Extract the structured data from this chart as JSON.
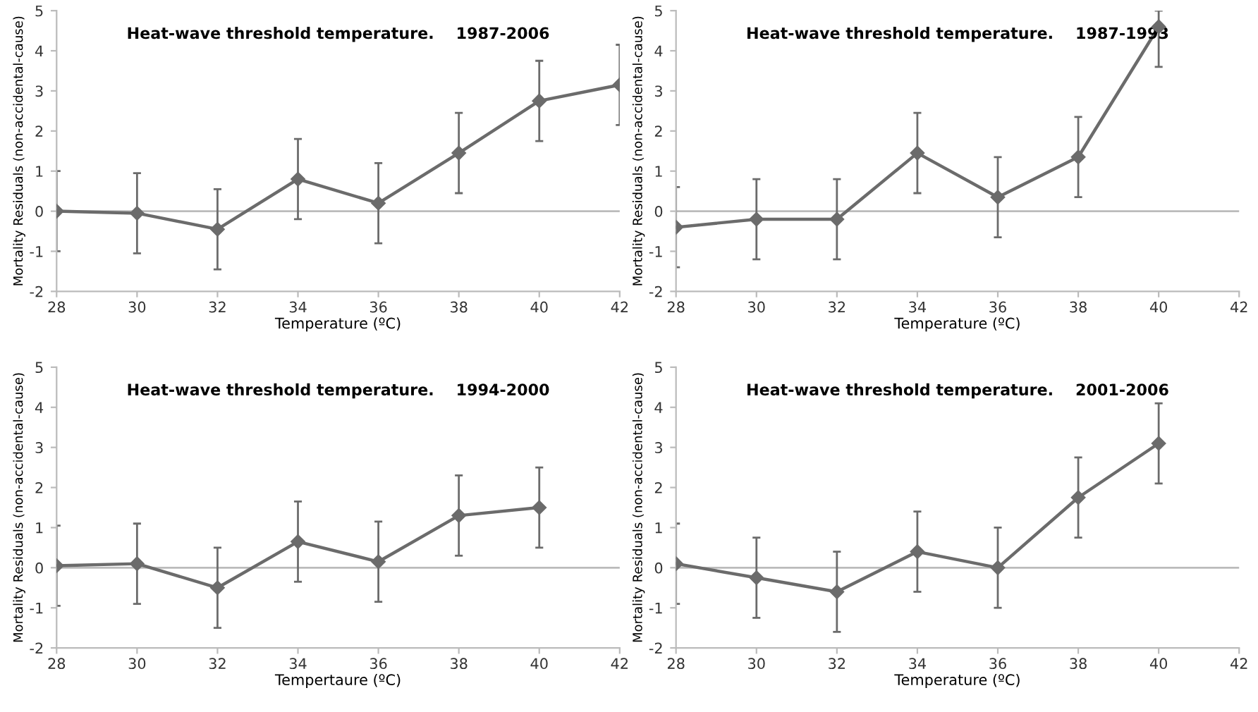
{
  "chart_data": [
    {
      "type": "line",
      "title": "Heat-wave threshold temperature.    1987-2006",
      "xlabel": "Temperature (ºC)",
      "ylabel": "Mortality Residuals (non-accidental-cause)",
      "xlim": [
        28,
        42
      ],
      "xticks": [
        28,
        30,
        32,
        34,
        36,
        38,
        40,
        42
      ],
      "ylim": [
        -2,
        5
      ],
      "yticks": [
        -2,
        -1,
        0,
        1,
        2,
        3,
        4,
        5
      ],
      "grid": false,
      "legend": false,
      "marker": "diamond",
      "line_style": "solid",
      "ref_lines": [
        {
          "axis": "y",
          "value": 0,
          "color": "#bbbbbb"
        }
      ],
      "series": [
        {
          "color": "#6b6b6b",
          "x": [
            28,
            30,
            32,
            34,
            36,
            38,
            40,
            42
          ],
          "values": [
            0,
            -0.05,
            -0.45,
            0.8,
            0.2,
            1.45,
            2.75,
            3.15
          ],
          "errors": [
            1,
            1,
            1,
            1,
            1,
            1,
            1,
            1
          ]
        }
      ]
    },
    {
      "type": "line",
      "title": "Heat-wave threshold temperature.    1987-1993",
      "xlabel": "Temperature (ºC)",
      "ylabel": "Mortality Residuals (non-accidental-cause)",
      "xlim": [
        28,
        42
      ],
      "xticks": [
        28,
        30,
        32,
        34,
        36,
        38,
        40,
        42
      ],
      "ylim": [
        -2,
        5
      ],
      "yticks": [
        -2,
        -1,
        0,
        1,
        2,
        3,
        4,
        5
      ],
      "grid": false,
      "legend": false,
      "marker": "diamond",
      "line_style": "solid",
      "ref_lines": [
        {
          "axis": "y",
          "value": 0,
          "color": "#bbbbbb"
        }
      ],
      "series": [
        {
          "color": "#6b6b6b",
          "x": [
            28,
            30,
            32,
            34,
            36,
            38,
            40
          ],
          "values": [
            -0.4,
            -0.2,
            -0.2,
            1.45,
            0.35,
            1.35,
            4.6
          ],
          "errors": [
            1,
            1,
            1,
            1,
            1,
            1,
            [
              3.6,
              5
            ]
          ]
        }
      ]
    },
    {
      "type": "line",
      "title": "Heat-wave threshold temperature.    1994-2000",
      "xlabel": "Tempertaure (ºC)",
      "ylabel": "Mortality Residuals (non-accidental-cause)",
      "xlim": [
        28,
        42
      ],
      "xticks": [
        28,
        30,
        32,
        34,
        36,
        38,
        40,
        42
      ],
      "ylim": [
        -2,
        5
      ],
      "yticks": [
        -2,
        -1,
        0,
        1,
        2,
        3,
        4,
        5
      ],
      "grid": false,
      "legend": false,
      "marker": "diamond",
      "line_style": "solid",
      "ref_lines": [
        {
          "axis": "y",
          "value": 0,
          "color": "#bbbbbb"
        }
      ],
      "series": [
        {
          "color": "#6b6b6b",
          "x": [
            28,
            30,
            32,
            34,
            36,
            38,
            40
          ],
          "values": [
            0.05,
            0.1,
            -0.5,
            0.65,
            0.15,
            1.3,
            1.5
          ],
          "errors": [
            1,
            1,
            1,
            1,
            1,
            1,
            1
          ]
        }
      ]
    },
    {
      "type": "line",
      "title": "Heat-wave threshold temperature.    2001-2006",
      "xlabel": "Temperature (ºC)",
      "ylabel": "Mortality Residuals (non-accidental-cause)",
      "xlim": [
        28,
        42
      ],
      "xticks": [
        28,
        30,
        32,
        34,
        36,
        38,
        40,
        42
      ],
      "ylim": [
        -2,
        5
      ],
      "yticks": [
        -2,
        -1,
        0,
        1,
        2,
        3,
        4,
        5
      ],
      "grid": false,
      "legend": false,
      "marker": "diamond",
      "line_style": "solid",
      "ref_lines": [
        {
          "axis": "y",
          "value": 0,
          "color": "#bbbbbb"
        }
      ],
      "series": [
        {
          "color": "#6b6b6b",
          "x": [
            28,
            30,
            32,
            34,
            36,
            38,
            40
          ],
          "values": [
            0.1,
            -0.25,
            -0.6,
            0.4,
            0.0,
            1.75,
            3.1
          ],
          "errors": [
            1,
            1,
            1,
            1,
            1,
            1,
            1
          ]
        }
      ]
    }
  ]
}
